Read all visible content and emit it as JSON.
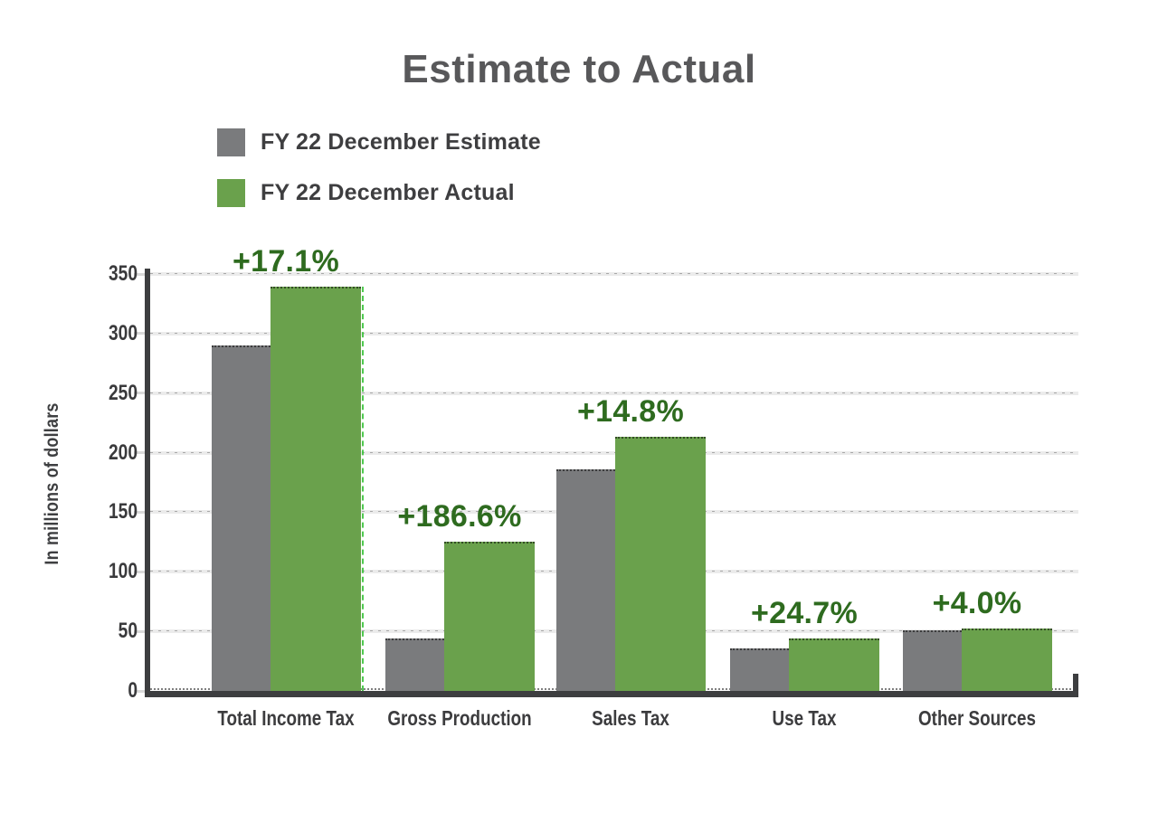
{
  "page": {
    "background": "#ffffff"
  },
  "chart_data": {
    "type": "bar",
    "title": "Estimate to Actual",
    "ylabel": "In millions of dollars",
    "xlabel": "",
    "categories": [
      "Total Income Tax",
      "Gross Production",
      "Sales Tax",
      "Use Tax",
      "Other Sources"
    ],
    "series": [
      {
        "name": "FY 22 December Estimate",
        "color": "#7a7b7d",
        "values": [
          290,
          43.7,
          186,
          35.5,
          50.5
        ]
      },
      {
        "name": "FY 22 December Actual",
        "color": "#6aa14c",
        "values": [
          339.6,
          125.3,
          213.5,
          44.3,
          52.5
        ]
      }
    ],
    "change_labels": [
      "+17.1%",
      "+186.6%",
      "+14.8%",
      "+24.7%",
      "+4.0%"
    ],
    "yticks": [
      0,
      50,
      100,
      150,
      200,
      250,
      300,
      350
    ],
    "ylim": [
      0,
      350
    ],
    "grid": true,
    "legend_position": "top-left",
    "colors": {
      "change_label": "#2e6b1f",
      "title": "#58585a",
      "axis": "#3d3e40",
      "gridline": "#ebebeb",
      "tick_label": "#3a3a3c"
    }
  }
}
